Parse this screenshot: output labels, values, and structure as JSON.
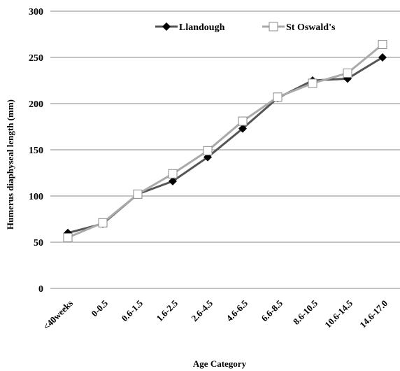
{
  "chart_data": {
    "type": "line",
    "title": "",
    "xlabel": "Age Category",
    "ylabel": "Humerus diaphyseal length (mm)",
    "ylim": [
      0,
      300
    ],
    "yticks": [
      0,
      50,
      100,
      150,
      200,
      250,
      300
    ],
    "grid": "horizontal",
    "legend_position": "top",
    "categories": [
      "<40weeks",
      "0-0.5",
      "0.6-1.5",
      "1.6-2.5",
      "2.6-4.5",
      "4.6-6.5",
      "6.6-8.5",
      "8.6-10.5",
      "10.6-14.5",
      "14.6-17.0"
    ],
    "series": [
      {
        "name": "Llandough",
        "color": "#555555",
        "marker": "diamond-filled",
        "marker_color": "#000000",
        "values": [
          60,
          70,
          102,
          116,
          142,
          173,
          206,
          225,
          227,
          250
        ]
      },
      {
        "name": "St Oswald's",
        "color": "#aaaaaa",
        "marker": "square-open",
        "marker_color": "#888888",
        "values": [
          55,
          71,
          102,
          124,
          149,
          181,
          207,
          222,
          233,
          264
        ]
      }
    ]
  }
}
